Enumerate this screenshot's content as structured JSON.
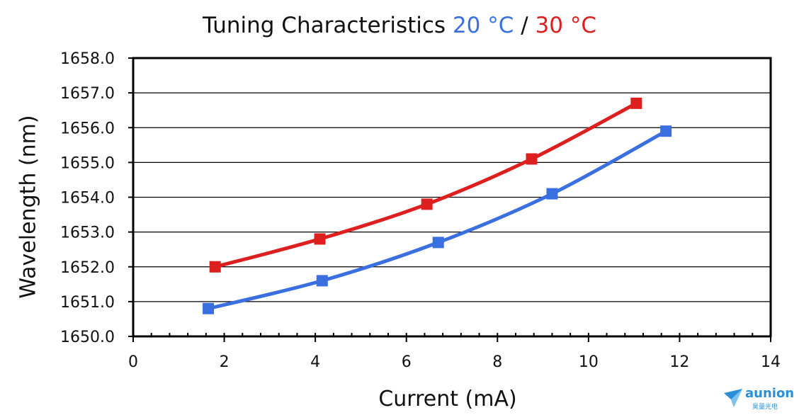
{
  "chart_data": {
    "type": "line",
    "title": "Tuning Characteristics",
    "title_series": [
      {
        "text": "20 °C",
        "color": "#3a6fe0"
      },
      {
        "separator": " / "
      },
      {
        "text": "30 °C",
        "color": "#dd1f1f"
      }
    ],
    "xlabel": "Current (mA)",
    "ylabel": "Wavelength (nm)",
    "xlim": [
      0,
      14
    ],
    "ylim": [
      1650.0,
      1658.0
    ],
    "xticks": [
      "0",
      "2",
      "4",
      "6",
      "8",
      "10",
      "12",
      "14"
    ],
    "yticks": [
      "1650.0",
      "1651.0",
      "1652.0",
      "1653.0",
      "1654.0",
      "1655.0",
      "1656.0",
      "1657.0",
      "1658.0"
    ],
    "grid": "horizontal",
    "series": [
      {
        "name": "20 °C",
        "color": "#3a6fe0",
        "x": [
          1.65,
          4.15,
          6.7,
          9.2,
          11.7
        ],
        "y": [
          1650.8,
          1651.6,
          1652.7,
          1654.1,
          1655.9
        ]
      },
      {
        "name": "30 °C",
        "color": "#dd1f1f",
        "x": [
          1.8,
          4.1,
          6.45,
          8.75,
          11.05
        ],
        "y": [
          1652.0,
          1652.8,
          1653.8,
          1655.1,
          1656.7
        ]
      }
    ]
  },
  "watermark": {
    "text": "aunion",
    "subtext": "昊量光电",
    "color": "#2a8fd8"
  }
}
